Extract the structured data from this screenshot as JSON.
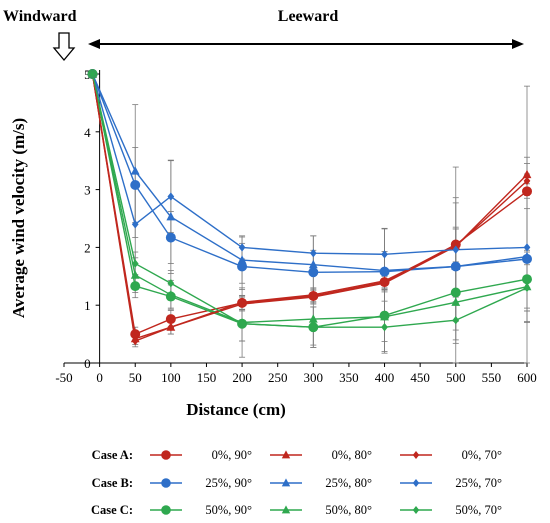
{
  "chart_data": {
    "type": "line",
    "xlabel": "Distance (cm)",
    "ylabel": "Average wind velocity (m/s)",
    "xlim": [
      -50,
      600
    ],
    "ylim": [
      0,
      5
    ],
    "x_ticks": [
      "-50",
      "0",
      "50",
      "100",
      "150",
      "200",
      "250",
      "300",
      "350",
      "400",
      "450",
      "500",
      "550",
      "600"
    ],
    "y_ticks": [
      "0",
      "1",
      "2",
      "3",
      "4",
      "5"
    ],
    "annotations": {
      "windward": "Windward",
      "leeward": "Leeward"
    },
    "colors": {
      "case_a": "#C0271E",
      "case_b": "#2E6FC8",
      "case_c": "#2FA84F"
    },
    "x": [
      -10,
      50,
      100,
      200,
      300,
      400,
      500,
      600
    ],
    "series": [
      {
        "name": "0%, 90°",
        "case": "Case A:",
        "marker": "circle",
        "color": "#C0271E",
        "values": [
          5.0,
          0.5,
          0.76,
          1.04,
          1.16,
          1.4,
          2.05,
          2.97
        ],
        "errors": [
          0,
          0.12,
          0.15,
          0.12,
          0.12,
          0.12,
          0.3,
          0.3
        ]
      },
      {
        "name": "0%, 80°",
        "case": "",
        "marker": "triangle",
        "color": "#C0271E",
        "values": [
          5.0,
          0.42,
          0.62,
          1.05,
          1.18,
          1.42,
          2.02,
          3.26
        ],
        "errors": [
          0,
          0.1,
          0.12,
          0.12,
          0.12,
          0.12,
          0.3,
          0.3
        ]
      },
      {
        "name": "0%, 70°",
        "case": "",
        "marker": "diamond",
        "color": "#C0271E",
        "values": [
          5.0,
          0.38,
          0.62,
          1.02,
          1.14,
          1.38,
          2.02,
          3.15
        ],
        "errors": [
          0,
          0.1,
          0.12,
          0.12,
          0.12,
          0.12,
          0.3,
          0.3
        ]
      },
      {
        "name": "25%, 90°",
        "case": "Case B:",
        "marker": "circle",
        "color": "#2E6FC8",
        "values": [
          5.0,
          3.08,
          2.17,
          1.67,
          1.57,
          1.58,
          1.67,
          1.8
        ],
        "errors": [
          0,
          0.65,
          0.45,
          0.4,
          0.38,
          0.35,
          1.1,
          1.1
        ]
      },
      {
        "name": "25%, 80°",
        "case": "",
        "marker": "triangle",
        "color": "#2E6FC8",
        "values": [
          5.0,
          3.32,
          2.53,
          1.78,
          1.7,
          1.6,
          1.67,
          1.84
        ],
        "errors": [
          0,
          1.15,
          0.98,
          0.4,
          0.5,
          0.72,
          1.72,
          2.95
        ]
      },
      {
        "name": "25%, 70°",
        "case": "",
        "marker": "diamond",
        "color": "#2E6FC8",
        "values": [
          5.0,
          2.4,
          2.88,
          2.0,
          1.9,
          1.88,
          1.96,
          2.0
        ],
        "errors": [
          0,
          0.7,
          0.62,
          0.2,
          0.3,
          0.45,
          0.9,
          1.1
        ]
      },
      {
        "name": "50%, 90°",
        "case": "Case C:",
        "marker": "circle",
        "color": "#2FA84F",
        "values": [
          5.0,
          1.33,
          1.15,
          0.68,
          0.62,
          0.82,
          1.22,
          1.45
        ],
        "errors": [
          0,
          0.2,
          0.2,
          0.3,
          0.35,
          0.45,
          0.5,
          0.5
        ]
      },
      {
        "name": "50%, 80°",
        "case": "",
        "marker": "triangle",
        "color": "#2FA84F",
        "values": [
          5.0,
          1.52,
          1.18,
          0.7,
          0.76,
          0.8,
          1.05,
          1.32
        ],
        "errors": [
          0,
          0.3,
          0.25,
          0.6,
          0.45,
          0.6,
          0.65,
          0.6
        ]
      },
      {
        "name": "50%, 70°",
        "case": "",
        "marker": "diamond",
        "color": "#2FA84F",
        "values": [
          5.0,
          1.72,
          1.38,
          0.68,
          0.62,
          0.62,
          0.74,
          1.3
        ],
        "errors": [
          0,
          0.2,
          0.22,
          0.3,
          0.35,
          0.45,
          0.4,
          0.4
        ]
      }
    ]
  }
}
